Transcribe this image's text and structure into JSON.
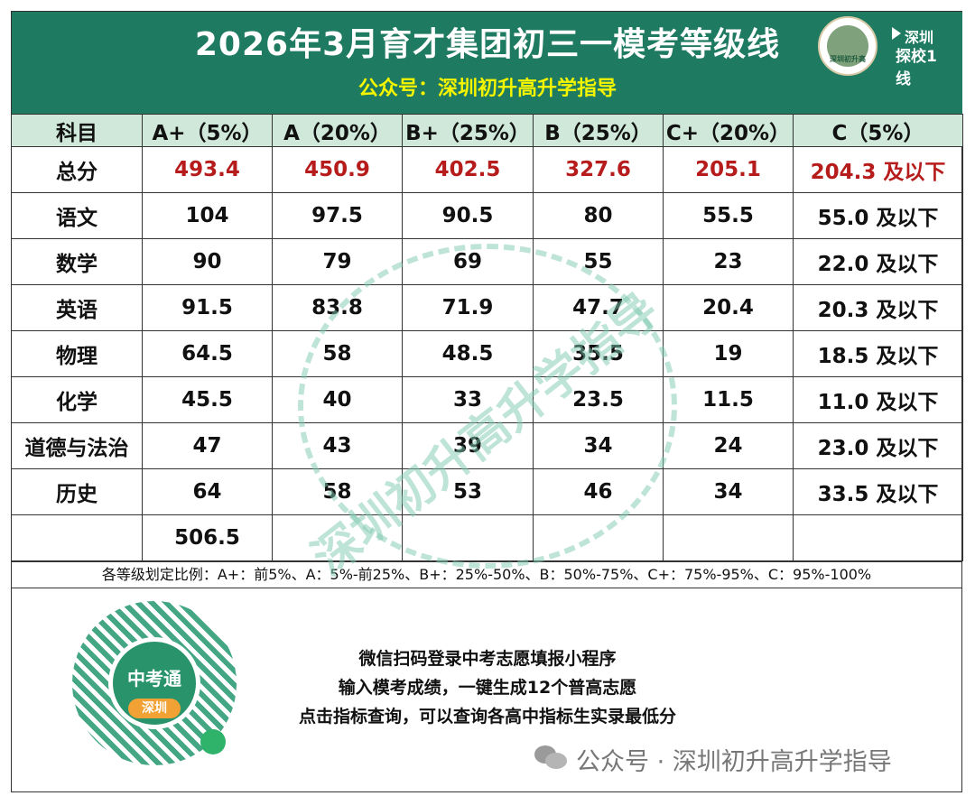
{
  "header": {
    "title": "2026年3月育才集团初三一模考等级线",
    "subtitle": "公众号：深圳初升高升学指导",
    "logo_left_caption": "深圳初升高",
    "logo_right_line1": "深圳",
    "logo_right_line2": "探校1线"
  },
  "table": {
    "columns": [
      "科目",
      "A+（5%）",
      "A（20%）",
      "B+（25%）",
      "B（25%）",
      "C+（20%）",
      "C（5%）"
    ],
    "total": {
      "subject": "总分",
      "values": [
        "493.4",
        "450.9",
        "402.5",
        "327.6",
        "205.1",
        "204.3 及以下"
      ]
    },
    "rows": [
      {
        "subject": "语文",
        "values": [
          "104",
          "97.5",
          "90.5",
          "80",
          "55.5",
          "55.0 及以下"
        ]
      },
      {
        "subject": "数学",
        "values": [
          "90",
          "79",
          "69",
          "55",
          "23",
          "22.0 及以下"
        ]
      },
      {
        "subject": "英语",
        "values": [
          "91.5",
          "83.8",
          "71.9",
          "47.7",
          "20.4",
          "20.3 及以下"
        ]
      },
      {
        "subject": "物理",
        "values": [
          "64.5",
          "58",
          "48.5",
          "35.5",
          "19",
          "18.5 及以下"
        ]
      },
      {
        "subject": "化学",
        "values": [
          "45.5",
          "40",
          "33",
          "23.5",
          "11.5",
          "11.0 及以下"
        ]
      },
      {
        "subject": "道德与法治",
        "values": [
          "47",
          "43",
          "39",
          "34",
          "24",
          "23.0 及以下"
        ]
      },
      {
        "subject": "历史",
        "values": [
          "64",
          "58",
          "53",
          "46",
          "34",
          "33.5 及以下"
        ]
      }
    ],
    "extra_value": "506.5"
  },
  "note": "各等级划定比例：A+：前5%、A：5%-前25%、B+：25%-50%、B：50%-75%、C+：75%-95%、C：95%-100%",
  "watermark": "深圳初升高升学指导",
  "qr": {
    "center_label": "中考通",
    "badge": "深圳"
  },
  "promo": {
    "line1": "微信扫码登录中考志愿填报小程序",
    "line2": "输入模考成绩，一键生成12个普高志愿",
    "line3": "点击指标查询，可以查询各高中指标生实录最低分"
  },
  "footer": {
    "text": "公众号 · 深圳初升高升学指导"
  },
  "colors": {
    "header_bg": "#1e7a60",
    "subtitle": "#f5f500",
    "total_red": "#b71c1c",
    "header_row_bg": "#cfe8d9"
  }
}
